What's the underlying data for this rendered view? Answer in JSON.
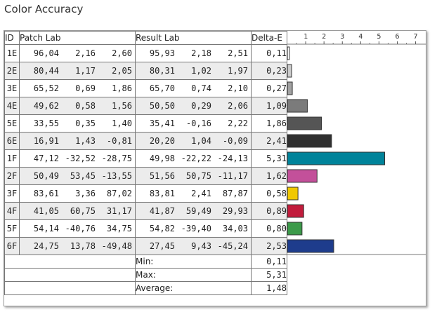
{
  "title": "Color Accuracy",
  "headers": {
    "id": "ID",
    "patch": "Patch Lab",
    "result": "Result Lab",
    "delta": "Delta-E"
  },
  "rows": [
    {
      "id": "1E",
      "patch": [
        "96,04",
        "2,16",
        "2,60"
      ],
      "result": [
        "95,93",
        "2,18",
        "2,51"
      ],
      "delta": "0,11",
      "color": "#ffffff"
    },
    {
      "id": "2E",
      "patch": [
        "80,44",
        "1,17",
        "2,05"
      ],
      "result": [
        "80,31",
        "1,02",
        "1,97"
      ],
      "delta": "0,23",
      "color": "#cccccc"
    },
    {
      "id": "3E",
      "patch": [
        "65,52",
        "0,69",
        "1,86"
      ],
      "result": [
        "65,70",
        "0,74",
        "2,10"
      ],
      "delta": "0,27",
      "color": "#a2a2a2"
    },
    {
      "id": "4E",
      "patch": [
        "49,62",
        "0,58",
        "1,56"
      ],
      "result": [
        "50,50",
        "0,29",
        "2,06"
      ],
      "delta": "1,09",
      "color": "#7b7b7b"
    },
    {
      "id": "5E",
      "patch": [
        "33,55",
        "0,35",
        "1,40"
      ],
      "result": [
        "35,41",
        "-0,16",
        "2,22"
      ],
      "delta": "1,86",
      "color": "#555555"
    },
    {
      "id": "6E",
      "patch": [
        "16,91",
        "1,43",
        "-0,81"
      ],
      "result": [
        "20,20",
        "1,04",
        "-0,09"
      ],
      "delta": "2,41",
      "color": "#303030"
    },
    {
      "id": "1F",
      "patch": [
        "47,12",
        "-32,52",
        "-28,75"
      ],
      "result": [
        "49,98",
        "-22,22",
        "-24,13"
      ],
      "delta": "5,31",
      "color": "#00839a"
    },
    {
      "id": "2F",
      "patch": [
        "50,49",
        "53,45",
        "-13,55"
      ],
      "result": [
        "51,56",
        "50,75",
        "-11,17"
      ],
      "delta": "1,62",
      "color": "#c3509a"
    },
    {
      "id": "3F",
      "patch": [
        "83,61",
        "3,36",
        "87,02"
      ],
      "result": [
        "83,81",
        "2,41",
        "87,87"
      ],
      "delta": "0,58",
      "color": "#f0c800"
    },
    {
      "id": "4F",
      "patch": [
        "41,05",
        "60,75",
        "31,17"
      ],
      "result": [
        "41,87",
        "59,49",
        "29,93"
      ],
      "delta": "0,89",
      "color": "#c21c3c"
    },
    {
      "id": "5F",
      "patch": [
        "54,14",
        "-40,76",
        "34,75"
      ],
      "result": [
        "54,82",
        "-39,40",
        "34,03"
      ],
      "delta": "0,80",
      "color": "#3c9a4a"
    },
    {
      "id": "6F",
      "patch": [
        "24,75",
        "13,78",
        "-49,48"
      ],
      "result": [
        "27,45",
        "9,43",
        "-45,24"
      ],
      "delta": "2,53",
      "color": "#1e3c8c"
    }
  ],
  "summary": [
    {
      "label": "Min:",
      "value": "0,11"
    },
    {
      "label": "Max:",
      "value": "5,31"
    },
    {
      "label": "Average:",
      "value": "1,48"
    }
  ],
  "chart_data": {
    "type": "bar",
    "orientation": "horizontal",
    "categories": [
      "1E",
      "2E",
      "3E",
      "4E",
      "5E",
      "6E",
      "1F",
      "2F",
      "3F",
      "4F",
      "5F",
      "6F"
    ],
    "values": [
      0.11,
      0.23,
      0.27,
      1.09,
      1.86,
      2.41,
      5.31,
      1.62,
      0.58,
      0.89,
      0.8,
      2.53
    ],
    "colors": [
      "#ffffff",
      "#cccccc",
      "#a2a2a2",
      "#7b7b7b",
      "#555555",
      "#303030",
      "#00839a",
      "#c3509a",
      "#f0c800",
      "#c21c3c",
      "#3c9a4a",
      "#1e3c8c"
    ],
    "ticks": [
      1,
      2,
      3,
      4,
      5,
      6,
      7
    ],
    "xlim": [
      0,
      7.4
    ],
    "grid": false
  }
}
